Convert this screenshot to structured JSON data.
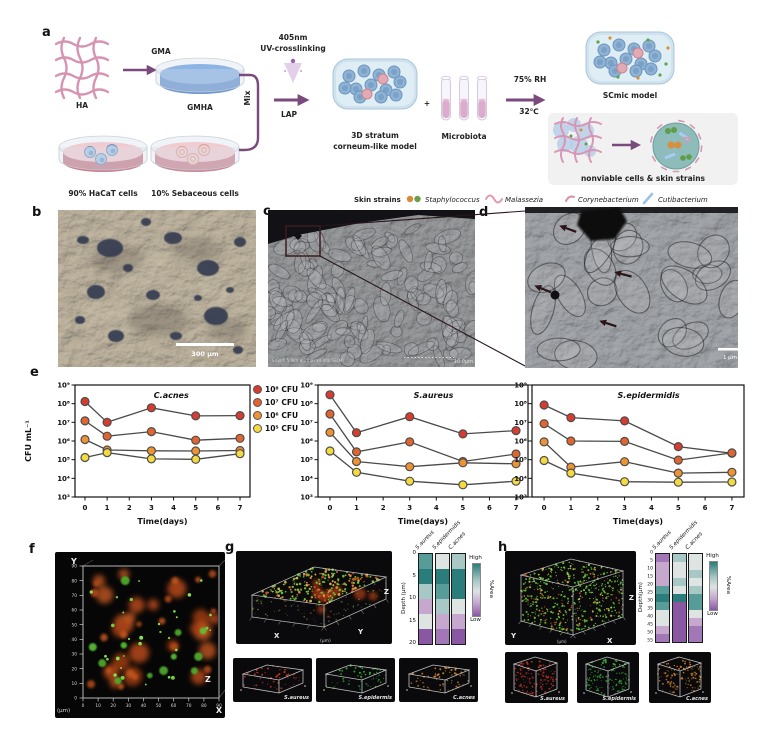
{
  "panel_labels": {
    "a": "a",
    "b": "b",
    "c": "c",
    "d": "d",
    "e": "e",
    "f": "f",
    "g": "g",
    "h": "h"
  },
  "panel_a": {
    "ha": "HA",
    "gma": "GMA",
    "gmha": "GMHA",
    "hacat": "90% HaCaT cells",
    "sebaceous": "10% Sebaceous cells",
    "mix": "Mix",
    "uv_line1": "405nm",
    "uv_line2": "UV-crosslinking",
    "lap": "LAP",
    "model_line1": "3D stratum",
    "model_line2": "corneum-like model",
    "plus": "+",
    "microbiota": "Microbiota",
    "rh": "75% RH",
    "temp": "32℃",
    "scmic": "SCmic model",
    "nonviable": "nonviable cells & skin strains",
    "legend_title": "Skin strains",
    "legend_items": [
      {
        "name": "Staphylococcus",
        "type": "cocci",
        "colors": [
          "#d9893c",
          "#6f9e4a"
        ]
      },
      {
        "name": "Malassezia",
        "type": "wave",
        "colors": [
          "#e39ab4"
        ]
      },
      {
        "name": "Corynebacterium",
        "type": "comma",
        "colors": [
          "#d898ae"
        ]
      },
      {
        "name": "Cutibacterium",
        "type": "rod",
        "colors": [
          "#9ec3e6"
        ]
      }
    ]
  },
  "panel_b": {
    "scale_bar": "300 μm"
  },
  "panel_c": {
    "meta": "S4800 5.0kV 8.2mm x4.00k SE(M)",
    "scale_bar": "10.0μm"
  },
  "panel_d": {
    "scale_bar": "1 μm"
  },
  "chart_data": [
    {
      "type": "line",
      "title": "C.acnes",
      "xlabel": "Time(days)",
      "ylabel": "CFU mL⁻¹",
      "x": [
        0,
        1,
        3,
        5,
        7
      ],
      "xticks": [
        0,
        1,
        2,
        3,
        4,
        5,
        6,
        7
      ],
      "ylog_range": [
        3,
        9
      ],
      "yticks": [
        "10⁹",
        "10⁸",
        "10⁷",
        "10⁶",
        "10⁵",
        "10⁴",
        "10³"
      ],
      "series": [
        {
          "name": "10⁸ CFU",
          "color": "#d63c30",
          "values": [
            130000000.0,
            10000000.0,
            60000000.0,
            22000000.0,
            23000000.0
          ]
        },
        {
          "name": "10⁷ CFU",
          "color": "#e2642f",
          "values": [
            12000000.0,
            1800000.0,
            3200000.0,
            1100000.0,
            1400000.0
          ]
        },
        {
          "name": "10⁶ CFU",
          "color": "#ef9233",
          "values": [
            1200000.0,
            330000.0,
            300000.0,
            290000.0,
            310000.0
          ]
        },
        {
          "name": "10⁵ CFU",
          "color": "#f4da3e",
          "values": [
            130000.0,
            240000.0,
            110000.0,
            105000.0,
            210000.0
          ]
        }
      ]
    },
    {
      "type": "line",
      "title": "S.aureus",
      "xlabel": "Time(days)",
      "ylabel": "",
      "x": [
        0,
        1,
        3,
        5,
        7
      ],
      "xticks": [
        0,
        1,
        2,
        3,
        4,
        5,
        6,
        7
      ],
      "ylog_range": [
        3,
        9
      ],
      "yticks": [
        "10⁹",
        "10⁸",
        "10⁷",
        "10⁶",
        "10⁵",
        "10⁴",
        "10³"
      ],
      "series": [
        {
          "name": "10⁸ CFU",
          "color": "#d63c30",
          "values": [
            300000000.0,
            2800000.0,
            20000000.0,
            2400000.0,
            3600000.0
          ]
        },
        {
          "name": "10⁷ CFU",
          "color": "#e2642f",
          "values": [
            28000000.0,
            260000.0,
            900000.0,
            80000.0,
            200000.0
          ]
        },
        {
          "name": "10⁶ CFU",
          "color": "#ef9233",
          "values": [
            2900000.0,
            80000.0,
            42000.0,
            68000.0,
            60000.0
          ]
        },
        {
          "name": "10⁵ CFU",
          "color": "#f4da3e",
          "values": [
            290000.0,
            21000.0,
            7000.0,
            4500.0,
            7000.0
          ]
        }
      ]
    },
    {
      "type": "line",
      "title": "S.epidermidis",
      "xlabel": "Time(days)",
      "ylabel": "",
      "x": [
        0,
        1,
        3,
        5,
        7
      ],
      "xticks": [
        0,
        1,
        2,
        3,
        4,
        5,
        6,
        7
      ],
      "ylog_range": [
        3,
        9
      ],
      "yticks": [
        "10⁹",
        "10⁸",
        "10⁷",
        "10⁶",
        "10⁵",
        "10⁴",
        "10³"
      ],
      "series": [
        {
          "name": "10⁸ CFU",
          "color": "#d63c30",
          "values": [
            85000000.0,
            18000000.0,
            12000000.0,
            500000.0,
            220000.0
          ]
        },
        {
          "name": "10⁷ CFU",
          "color": "#e2642f",
          "values": [
            8500000.0,
            1000000.0,
            950000.0,
            95000.0,
            230000.0
          ]
        },
        {
          "name": "10⁶ CFU",
          "color": "#ef9233",
          "values": [
            900000.0,
            40000.0,
            78000.0,
            19000.0,
            21000.0
          ]
        },
        {
          "name": "10⁵ CFU",
          "color": "#f4da3e",
          "values": [
            90000.0,
            19000.0,
            6600.0,
            6200.0,
            6400.0
          ]
        }
      ]
    }
  ],
  "panel_f": {
    "y_label": "Y",
    "x_label": "X",
    "z_label": "Z",
    "unit": "(μm)",
    "ticks": [
      0,
      10,
      20,
      30,
      40,
      50,
      60,
      70,
      80,
      90
    ]
  },
  "panel_g": {
    "axis_x": "X",
    "axis_y": "Y",
    "axis_z": "Z",
    "unit": "(μm)",
    "heatmap": {
      "columns": [
        "S.aureus",
        "S.epidermidis",
        "C.acnes"
      ],
      "depth_label": "Depth (μm)",
      "depth_ticks": [
        0,
        5,
        10,
        15,
        20
      ],
      "cells": [
        [
          "teal",
          "dteal",
          "pteal",
          "lpurp",
          "pale",
          "dpurp"
        ],
        [
          "pale",
          "dteal",
          "teal",
          "pteal",
          "lpurp",
          "purp"
        ],
        [
          "pteal",
          "dteal",
          "dteal",
          "pale",
          "lpurp",
          "dpurp"
        ]
      ],
      "scale": {
        "high": "High",
        "low": "Low",
        "label": "%Area"
      }
    },
    "boxes": [
      {
        "label": "S.aureus",
        "color": "#c43722"
      },
      {
        "label": "S.epidermis",
        "color": "#3aa93c"
      },
      {
        "label": "C.acnes",
        "color": "#cd832c"
      }
    ]
  },
  "panel_h": {
    "axis_x": "X",
    "axis_y": "Y",
    "axis_z": "Z",
    "unit": "(μm)",
    "heatmap": {
      "columns": [
        "S.aureus",
        "S.epidermidis",
        "C.acnes"
      ],
      "depth_label": "Depth(μm)",
      "depth_ticks": [
        0,
        5,
        10,
        15,
        20,
        25,
        30,
        35,
        40,
        45,
        50,
        55
      ],
      "cells": [
        [
          "purp",
          "lpurp",
          "lpurp",
          "lpurp",
          "teal",
          "dteal",
          "teal",
          "pale",
          "pale",
          "lpurp",
          "purp"
        ],
        [
          "pteal",
          "pale",
          "pale",
          "pteal",
          "pale",
          "dteal",
          "dpurp",
          "dpurp",
          "dpurp",
          "dpurp",
          "dpurp"
        ],
        [
          "pale",
          "pale",
          "pteal",
          "pale",
          "pteal",
          "teal",
          "teal",
          "pale",
          "lpurp",
          "purp",
          "purp"
        ]
      ],
      "scale": {
        "high": "High",
        "low": "Low",
        "label": "%Area"
      }
    },
    "boxes": [
      {
        "label": "S.aureus",
        "color": "#c43722"
      },
      {
        "label": "S.epidermis",
        "color": "#3aa93c"
      },
      {
        "label": "C.acnes",
        "color": "#cd832c"
      }
    ]
  },
  "heatmap_palette": {
    "dteal": "#2a7d7a",
    "teal": "#579c98",
    "pteal": "#a7c8c5",
    "pale": "#dde4e2",
    "lpurp": "#c6a8cf",
    "purp": "#a177b5",
    "dpurp": "#8a57a3"
  }
}
